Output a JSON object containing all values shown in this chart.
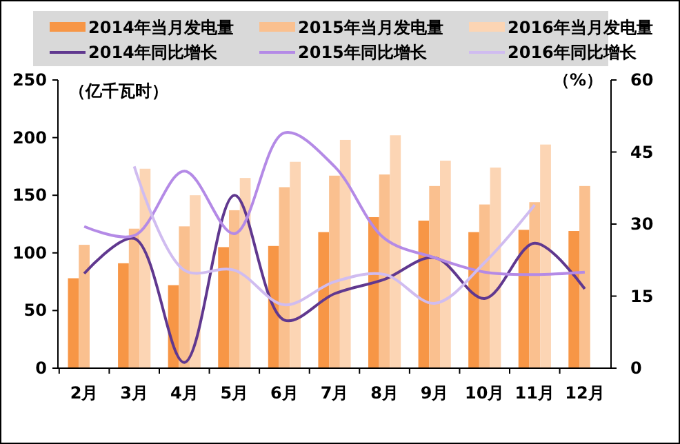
{
  "chart_data": {
    "type": "bar",
    "ylabel": "（亿千瓦时）",
    "y2label": "（%）",
    "categories": [
      "2月",
      "3月",
      "4月",
      "5月",
      "6月",
      "7月",
      "8月",
      "9月",
      "10月",
      "11月",
      "12月"
    ],
    "series": [
      {
        "name": "2014年当月发电量",
        "color": "#f79646",
        "values": [
          78,
          91,
          72,
          105,
          106,
          118,
          131,
          128,
          118,
          120,
          119
        ]
      },
      {
        "name": "2015年当月发电量",
        "color": "#fac08f",
        "values": [
          107,
          121,
          123,
          137,
          157,
          167,
          168,
          158,
          142,
          144,
          158
        ]
      },
      {
        "name": "2016年当月发电量",
        "color": "#fcd5b4",
        "values": [
          null,
          173,
          150,
          165,
          179,
          198,
          202,
          180,
          174,
          194,
          null
        ]
      },
      {
        "name": "2014年同比增长",
        "type": "line",
        "axis": "y2",
        "color": "#60388f",
        "values": [
          19.7,
          27,
          1.2,
          36,
          10,
          15.5,
          18.5,
          23,
          14.5,
          26,
          16.5
        ]
      },
      {
        "name": "2015年同比增长",
        "type": "line",
        "axis": "y2",
        "color": "#b48ae6",
        "values": [
          29.5,
          27.6,
          41,
          28,
          49,
          42,
          27,
          23,
          20,
          19.5,
          20
        ]
      },
      {
        "name": "2016年同比增长",
        "type": "line",
        "axis": "y2",
        "color": "#d0bcf0",
        "values": [
          null,
          42,
          20.4,
          20.4,
          13.2,
          18,
          19.5,
          13.5,
          22,
          34,
          null
        ]
      }
    ],
    "ylim": [
      0,
      250
    ],
    "yticks": [
      0,
      50,
      100,
      150,
      200,
      250
    ],
    "y2lim": [
      0,
      60
    ],
    "y2ticks": [
      0,
      15,
      30,
      45,
      60
    ],
    "legend": "top",
    "grid": false,
    "line_style": "solid",
    "marker": "none"
  }
}
